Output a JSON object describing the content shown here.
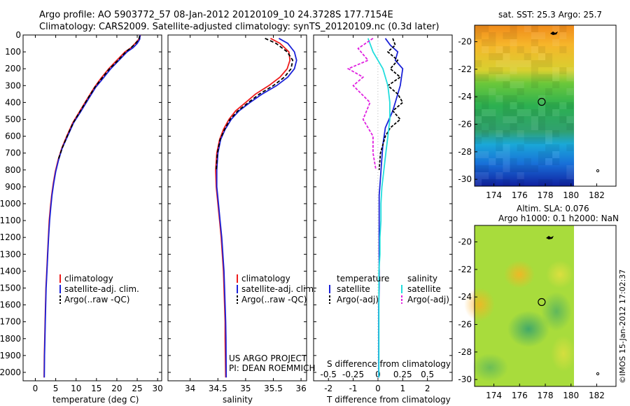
{
  "title_line1": "Argo profile: AO 5903772_57 08-Jan-2012 20120109_10 24.3728S 177.7154E",
  "title_line2": "Climatology: CARS2009. Satellite-adjusted climatology: synTS_20120109.nc (0.3d later)",
  "credit": "©IMOS 15-Jan-2012 17:02:37",
  "colors": {
    "climatology": "#ee1c1c",
    "satellite": "#1b22d8",
    "argo": "#000000",
    "satellite_s": "#22dddd",
    "argo_s": "#e020e0"
  },
  "chart_data": [
    {
      "type": "line",
      "name": "temperature",
      "xlabel": "temperature (deg C)",
      "xlim": [
        -3,
        31
      ],
      "ylim": [
        0,
        2050
      ],
      "yticks": [
        0,
        100,
        200,
        300,
        400,
        500,
        600,
        700,
        800,
        900,
        1000,
        1100,
        1200,
        1300,
        1400,
        1500,
        1600,
        1700,
        1800,
        1900,
        2000
      ],
      "xticks": [
        0,
        5,
        10,
        15,
        20,
        25,
        30
      ],
      "legend": [
        "climatology",
        "satellite-adj. clim.",
        "Argo(..raw -QC)"
      ],
      "series": [
        {
          "name": "climatology",
          "x": [
            25.8,
            25.4,
            24.5,
            23.5,
            22,
            20,
            18,
            16,
            14.5,
            12.7,
            10.7,
            9.2,
            7.7,
            6.5,
            5.6,
            4.9,
            4.4,
            4,
            3.7,
            3.4,
            3.2,
            3,
            2.8,
            2.6,
            2.5,
            2.4,
            2.3,
            2.2,
            2.15
          ],
          "y": [
            0,
            25,
            50,
            75,
            100,
            150,
            200,
            260,
            310,
            380,
            460,
            520,
            600,
            670,
            740,
            810,
            880,
            950,
            1020,
            1100,
            1200,
            1300,
            1400,
            1500,
            1600,
            1700,
            1800,
            1900,
            2030
          ]
        },
        {
          "name": "satellite-adj. clim.",
          "x": [
            25.7,
            25.6,
            25,
            24,
            22.5,
            20.5,
            18.5,
            16.5,
            14.8,
            13,
            11,
            9.4,
            7.9,
            6.6,
            5.7,
            5,
            4.5,
            4.1,
            3.8,
            3.5,
            3.25,
            3.05,
            2.85,
            2.65,
            2.55,
            2.45,
            2.35,
            2.25,
            2.2
          ],
          "y": [
            0,
            25,
            50,
            75,
            100,
            150,
            200,
            260,
            310,
            380,
            460,
            520,
            600,
            670,
            740,
            810,
            880,
            950,
            1020,
            1100,
            1200,
            1300,
            1400,
            1500,
            1600,
            1700,
            1800,
            1900,
            2030
          ]
        },
        {
          "name": "Argo(..raw -QC)",
          "x": [
            25.6,
            25.4,
            24.6,
            23.5,
            22.2,
            20.3,
            18.2,
            16.2,
            14.6,
            12.8,
            10.8,
            9.3,
            7.8,
            6.6,
            5.6
          ],
          "y": [
            5,
            25,
            50,
            75,
            100,
            150,
            200,
            260,
            310,
            380,
            460,
            520,
            600,
            670,
            740
          ]
        }
      ]
    },
    {
      "type": "line",
      "name": "salinity",
      "xlabel": "salinity",
      "xlim": [
        33.6,
        36.1
      ],
      "ylim": [
        0,
        2050
      ],
      "xticks": [
        34,
        34.5,
        35,
        35.5,
        36
      ],
      "legend": [
        "climatology",
        "satellite-adj. clim.",
        "Argo(..raw -QC)"
      ],
      "annotations": [
        "US ARGO PROJECT",
        "PI: DEAN ROEMMICH"
      ],
      "series": [
        {
          "name": "climatology",
          "x": [
            35.45,
            35.62,
            35.78,
            35.8,
            35.75,
            35.62,
            35.42,
            35.18,
            35,
            34.82,
            34.7,
            34.6,
            34.53,
            34.48,
            34.46,
            34.47,
            34.5,
            34.53,
            34.56,
            34.58,
            34.6,
            34.61,
            34.62,
            34.63,
            34.63,
            34.64
          ],
          "y": [
            20,
            50,
            100,
            150,
            200,
            250,
            300,
            350,
            400,
            450,
            500,
            560,
            620,
            700,
            800,
            900,
            1000,
            1100,
            1200,
            1300,
            1400,
            1500,
            1600,
            1700,
            1800,
            2030
          ]
        },
        {
          "name": "satellite-adj. clim.",
          "x": [
            35.6,
            35.76,
            35.88,
            35.92,
            35.88,
            35.76,
            35.56,
            35.3,
            35.08,
            34.88,
            34.74,
            34.63,
            34.55,
            34.5,
            34.48,
            34.48,
            34.51,
            34.54,
            34.57,
            34.59,
            34.61,
            34.62,
            34.63,
            34.64,
            34.645,
            34.65
          ],
          "y": [
            20,
            50,
            100,
            150,
            200,
            250,
            300,
            350,
            400,
            450,
            500,
            560,
            620,
            700,
            800,
            900,
            1000,
            1100,
            1200,
            1300,
            1400,
            1500,
            1600,
            1700,
            1800,
            2030
          ]
        },
        {
          "name": "Argo(..raw -QC)",
          "x": [
            35.35,
            35.55,
            35.75,
            35.85,
            35.82,
            35.7,
            35.5,
            35.25,
            35.05,
            34.86,
            34.72,
            34.62,
            34.54,
            34.49,
            34.47
          ],
          "y": [
            20,
            50,
            100,
            150,
            200,
            250,
            300,
            350,
            400,
            450,
            500,
            560,
            620,
            700,
            800
          ]
        }
      ]
    },
    {
      "type": "line",
      "name": "differences",
      "xlabel": "T difference from climatology",
      "xlabel_top": "S difference from climatology",
      "xlim": [
        -2.6,
        3.0
      ],
      "ylim": [
        0,
        2050
      ],
      "xticks_T": [
        -2,
        -1,
        0,
        1,
        2
      ],
      "xticks_S": [
        "-0.5",
        "-0.25",
        "0",
        "0.25",
        "0.5"
      ],
      "xticks_S_values": [
        -0.5,
        -0.25,
        0,
        0.25,
        0.5
      ],
      "legend_temperature_title": "temperature",
      "legend_salinity_title": "salinity",
      "legend_temperature": [
        "satellite",
        "Argo(-adj)"
      ],
      "legend_salinity": [
        "satellite",
        "Argo(-adj)"
      ],
      "series": [
        {
          "name": "T satellite",
          "x": [
            0.3,
            0.5,
            0.8,
            0.7,
            1.0,
            0.9,
            0.7,
            0.6,
            0.45,
            0.3,
            0.2,
            0.15,
            0.1,
            0.05,
            0.05,
            0.05,
            0.05,
            0.03,
            0.03,
            0.03,
            0.03
          ],
          "y": [
            20,
            60,
            100,
            150,
            200,
            300,
            400,
            450,
            500,
            550,
            650,
            750,
            850,
            950,
            1100,
            1300,
            1500,
            1600,
            1700,
            1800,
            2030
          ]
        },
        {
          "name": "T Argo(-adj)",
          "x": [
            0.6,
            0.7,
            0.4,
            0.8,
            0.5,
            0.9,
            0.4,
            0.8,
            1.0,
            0.6,
            0.9,
            0.5,
            0.3,
            0.2,
            0.1,
            0.05
          ],
          "y": [
            20,
            60,
            100,
            150,
            200,
            250,
            300,
            350,
            400,
            450,
            500,
            550,
            600,
            650,
            700,
            800
          ]
        },
        {
          "name": "S satellite",
          "x": [
            -0.1,
            -0.05,
            0.05,
            0.1,
            0.12,
            0.12,
            0.1,
            0.08,
            0.06,
            0.04,
            0.03,
            0.03,
            0.02,
            0.02,
            0.01,
            0.01,
            0.01,
            0.01,
            0.01
          ],
          "y": [
            20,
            100,
            200,
            300,
            400,
            500,
            600,
            700,
            800,
            900,
            1000,
            1100,
            1200,
            1300,
            1400,
            1500,
            1600,
            1800,
            2030
          ]
        },
        {
          "name": "S Argo(-adj)",
          "x": [
            -0.05,
            -0.2,
            -0.1,
            -0.3,
            -0.15,
            -0.25,
            -0.08,
            -0.15,
            -0.05,
            -0.05,
            -0.02
          ],
          "y": [
            20,
            80,
            150,
            200,
            250,
            300,
            400,
            500,
            600,
            700,
            800
          ]
        }
      ]
    },
    {
      "type": "heatmap",
      "name": "sst_map",
      "title": "sat. SST: 25.3 Argo: 25.7",
      "xlim": [
        172.5,
        183.5
      ],
      "ylim": [
        -30.5,
        -18.8
      ],
      "xticks": [
        174,
        176,
        178,
        180,
        182
      ],
      "yticks": [
        -20,
        -22,
        -24,
        -26,
        -28,
        -30
      ],
      "argo_position": [
        177.72,
        -24.37
      ]
    },
    {
      "type": "heatmap",
      "name": "sla_map",
      "title_line1": "Altim. SLA: 0.076",
      "title_line2": "Argo h1000: 0.1 h2000: NaN",
      "xlim": [
        172.5,
        183.5
      ],
      "ylim": [
        -30.5,
        -18.8
      ],
      "xticks": [
        174,
        176,
        178,
        180,
        182
      ],
      "yticks": [
        -20,
        -22,
        -24,
        -26,
        -28,
        -30
      ],
      "argo_position": [
        177.72,
        -24.37
      ]
    }
  ]
}
